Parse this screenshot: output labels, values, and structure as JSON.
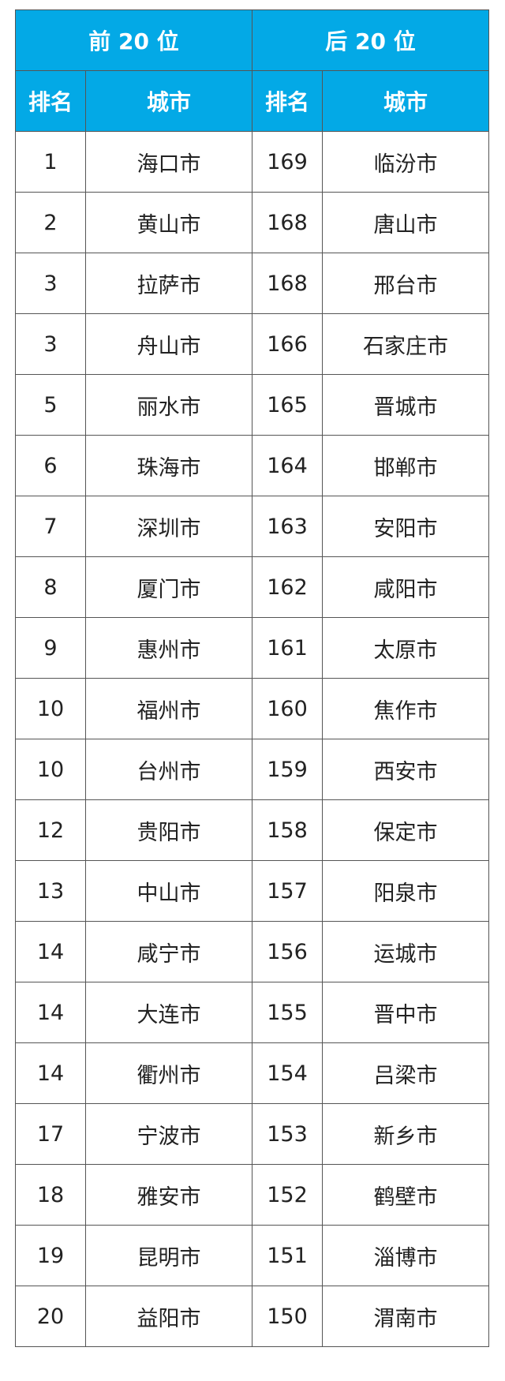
{
  "header": {
    "groups": [
      "前 20 位",
      "后 20 位"
    ],
    "columns": [
      "排名",
      "城市",
      "排名",
      "城市"
    ],
    "accent_color": "#03a9e6"
  },
  "rows": [
    [
      "1",
      "海口市",
      "169",
      "临汾市"
    ],
    [
      "2",
      "黄山市",
      "168",
      "唐山市"
    ],
    [
      "3",
      "拉萨市",
      "168",
      "邢台市"
    ],
    [
      "3",
      "舟山市",
      "166",
      "石家庄市"
    ],
    [
      "5",
      "丽水市",
      "165",
      "晋城市"
    ],
    [
      "6",
      "珠海市",
      "164",
      "邯郸市"
    ],
    [
      "7",
      "深圳市",
      "163",
      "安阳市"
    ],
    [
      "8",
      "厦门市",
      "162",
      "咸阳市"
    ],
    [
      "9",
      "惠州市",
      "161",
      "太原市"
    ],
    [
      "10",
      "福州市",
      "160",
      "焦作市"
    ],
    [
      "10",
      "台州市",
      "159",
      "西安市"
    ],
    [
      "12",
      "贵阳市",
      "158",
      "保定市"
    ],
    [
      "13",
      "中山市",
      "157",
      "阳泉市"
    ],
    [
      "14",
      "咸宁市",
      "156",
      "运城市"
    ],
    [
      "14",
      "大连市",
      "155",
      "晋中市"
    ],
    [
      "14",
      "衢州市",
      "154",
      "吕梁市"
    ],
    [
      "17",
      "宁波市",
      "153",
      "新乡市"
    ],
    [
      "18",
      "雅安市",
      "152",
      "鹤壁市"
    ],
    [
      "19",
      "昆明市",
      "151",
      "淄博市"
    ],
    [
      "20",
      "益阳市",
      "150",
      "渭南市"
    ]
  ]
}
